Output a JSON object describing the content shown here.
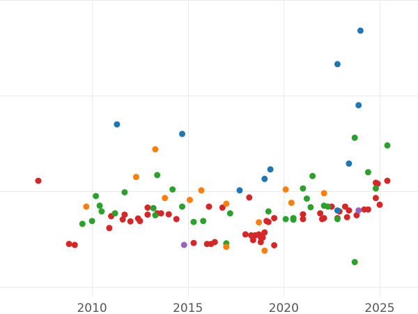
{
  "chart_data": {
    "type": "scatter",
    "title": "",
    "xlabel": "",
    "ylabel": "",
    "xlim": [
      2005.2,
      2027.0
    ],
    "ylim": [
      -50,
      1500
    ],
    "x_ticks": [
      2010,
      2015,
      2020,
      2025
    ],
    "x_tick_labels": [
      "2010",
      "2015",
      "2020",
      "2025"
    ],
    "y_gridlines": [
      0,
      500,
      1000,
      1500
    ],
    "grid": true,
    "legend": "none",
    "series": [
      {
        "color": "#d62728",
        "points": [
          [
            2007.2,
            555
          ],
          [
            2008.8,
            225
          ],
          [
            2009.1,
            220
          ],
          [
            2010.9,
            308
          ],
          [
            2011.0,
            370
          ],
          [
            2011.6,
            353
          ],
          [
            2011.7,
            378
          ],
          [
            2012.0,
            343
          ],
          [
            2012.4,
            358
          ],
          [
            2012.5,
            345
          ],
          [
            2012.9,
            378
          ],
          [
            2012.9,
            415
          ],
          [
            2013.4,
            385
          ],
          [
            2013.6,
            385
          ],
          [
            2014.0,
            380
          ],
          [
            2014.4,
            355
          ],
          [
            2015.3,
            230
          ],
          [
            2016.0,
            225
          ],
          [
            2016.1,
            420
          ],
          [
            2016.2,
            225
          ],
          [
            2016.4,
            235
          ],
          [
            2016.8,
            415
          ],
          [
            2018.0,
            275
          ],
          [
            2018.2,
            468
          ],
          [
            2018.3,
            270
          ],
          [
            2018.4,
            245
          ],
          [
            2018.5,
            270
          ],
          [
            2018.7,
            275
          ],
          [
            2018.8,
            260
          ],
          [
            2018.8,
            235
          ],
          [
            2018.9,
            258
          ],
          [
            2019.0,
            285
          ],
          [
            2019.1,
            345
          ],
          [
            2019.2,
            340
          ],
          [
            2019.5,
            218
          ],
          [
            2019.5,
            360
          ],
          [
            2021.0,
            380
          ],
          [
            2021.0,
            355
          ],
          [
            2021.9,
            385
          ],
          [
            2022.0,
            355
          ],
          [
            2022.1,
            360
          ],
          [
            2022.5,
            420
          ],
          [
            2022.8,
            360
          ],
          [
            2022.9,
            395
          ],
          [
            2023.2,
            420
          ],
          [
            2023.3,
            365
          ],
          [
            2023.4,
            400
          ],
          [
            2023.8,
            375
          ],
          [
            2024.2,
            405
          ],
          [
            2024.4,
            405
          ],
          [
            2024.8,
            465
          ],
          [
            2024.8,
            545
          ],
          [
            2024.9,
            540
          ],
          [
            2025.0,
            430
          ],
          [
            2025.4,
            555
          ]
        ]
      },
      {
        "color": "#2ca02c",
        "points": [
          [
            2009.5,
            330
          ],
          [
            2010.0,
            345
          ],
          [
            2010.2,
            475
          ],
          [
            2010.4,
            425
          ],
          [
            2010.5,
            395
          ],
          [
            2011.2,
            385
          ],
          [
            2011.7,
            495
          ],
          [
            2013.2,
            412
          ],
          [
            2013.3,
            375
          ],
          [
            2013.4,
            585
          ],
          [
            2014.2,
            510
          ],
          [
            2014.7,
            420
          ],
          [
            2015.3,
            340
          ],
          [
            2015.8,
            345
          ],
          [
            2017.0,
            228
          ],
          [
            2017.2,
            385
          ],
          [
            2019.2,
            395
          ],
          [
            2020.1,
            355
          ],
          [
            2020.5,
            360
          ],
          [
            2020.5,
            352
          ],
          [
            2021.0,
            515
          ],
          [
            2021.2,
            462
          ],
          [
            2021.4,
            417
          ],
          [
            2021.5,
            580
          ],
          [
            2022.1,
            425
          ],
          [
            2022.3,
            420
          ],
          [
            2022.8,
            355
          ],
          [
            2023.7,
            130
          ],
          [
            2023.7,
            780
          ],
          [
            2024.4,
            600
          ],
          [
            2024.8,
            515
          ],
          [
            2025.4,
            740
          ]
        ]
      },
      {
        "color": "#ff7f0e",
        "points": [
          [
            2009.7,
            420
          ],
          [
            2012.3,
            575
          ],
          [
            2013.3,
            720
          ],
          [
            2013.8,
            465
          ],
          [
            2015.1,
            455
          ],
          [
            2015.7,
            505
          ],
          [
            2017.0,
            210
          ],
          [
            2017.0,
            435
          ],
          [
            2018.7,
            338
          ],
          [
            2019.0,
            190
          ],
          [
            2020.1,
            510
          ],
          [
            2020.4,
            440
          ],
          [
            2022.1,
            490
          ]
        ]
      },
      {
        "color": "#1f77b4",
        "points": [
          [
            2011.3,
            850
          ],
          [
            2014.7,
            800
          ],
          [
            2017.7,
            505
          ],
          [
            2019.0,
            565
          ],
          [
            2019.3,
            615
          ],
          [
            2022.8,
            400
          ],
          [
            2022.8,
            1165
          ],
          [
            2023.4,
            645
          ],
          [
            2023.9,
            950
          ],
          [
            2024.0,
            1340
          ]
        ]
      },
      {
        "color": "#9467bd",
        "points": [
          [
            2014.8,
            220
          ],
          [
            2023.9,
            400
          ]
        ]
      }
    ]
  }
}
